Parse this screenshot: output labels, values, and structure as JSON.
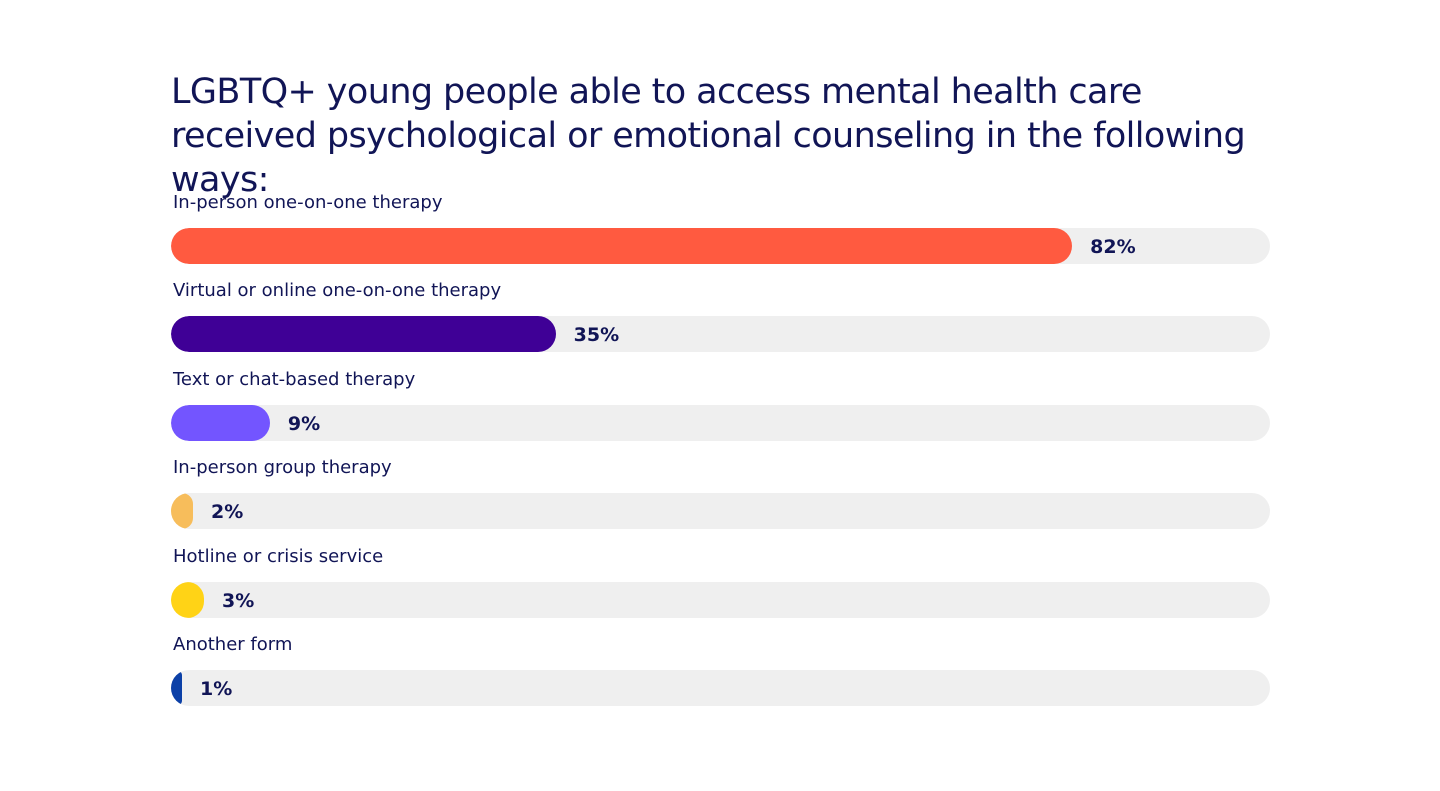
{
  "chart_data": {
    "type": "bar",
    "orientation": "horizontal",
    "title": "LGBTQ+ young people able to access mental health care received psychological or emotional counseling in the following ways:",
    "xlim": [
      0,
      100
    ],
    "grid": false,
    "categories": [
      "In-person one-on-one therapy",
      "Virtual or online one-on-one therapy",
      "Text or chat-based therapy",
      "In-person group therapy",
      "Hotline or crisis service",
      "Another form"
    ],
    "values": [
      82,
      35,
      9,
      2,
      3,
      1
    ],
    "value_labels": [
      "82%",
      "35%",
      "9%",
      "2%",
      "3%",
      "1%"
    ],
    "colors": [
      "#ff5a40",
      "#3f0096",
      "#7355ff",
      "#f7bd5b",
      "#ffd316",
      "#0c40a7"
    ],
    "track_color": "#efefef"
  }
}
